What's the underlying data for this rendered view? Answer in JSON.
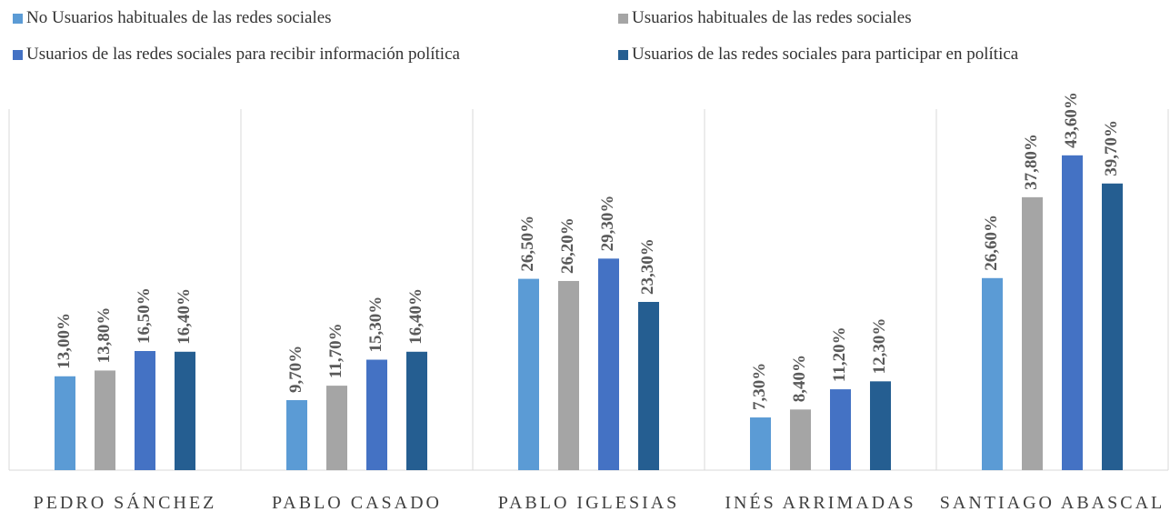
{
  "chart_data": {
    "type": "bar",
    "categories": [
      "PEDRO SÁNCHEZ",
      "PABLO CASADO",
      "PABLO IGLESIAS",
      "INÉS ARRIMADAS",
      "SANTIAGO ABASCAL"
    ],
    "series": [
      {
        "name": "No Usuarios habituales de las redes sociales",
        "color": "#5b9bd5",
        "values": [
          13.0,
          9.7,
          26.5,
          7.3,
          26.6
        ],
        "value_labels": [
          "13,00%",
          "9,70%",
          "26,50%",
          "7,30%",
          "26,60%"
        ]
      },
      {
        "name": "Usuarios habituales de las redes sociales",
        "color": "#a5a5a5",
        "values": [
          13.8,
          11.7,
          26.2,
          8.4,
          37.8
        ],
        "value_labels": [
          "13,80%",
          "11,70%",
          "26,20%",
          "8,40%",
          "37,80%"
        ]
      },
      {
        "name": "Usuarios de las redes sociales para recibir información política",
        "color": "#4472c4",
        "values": [
          16.5,
          15.3,
          29.3,
          11.2,
          43.6
        ],
        "value_labels": [
          "16,50%",
          "15,30%",
          "29,30%",
          "11,20%",
          "43,60%"
        ]
      },
      {
        "name": "Usuarios de las redes sociales para participar en política",
        "color": "#255e91",
        "values": [
          16.4,
          16.4,
          23.3,
          12.3,
          39.7
        ],
        "value_labels": [
          "16,40%",
          "16,40%",
          "23,30%",
          "12,30%",
          "39,70%"
        ]
      }
    ],
    "ylim": [
      0,
      50
    ],
    "legend": "top"
  }
}
